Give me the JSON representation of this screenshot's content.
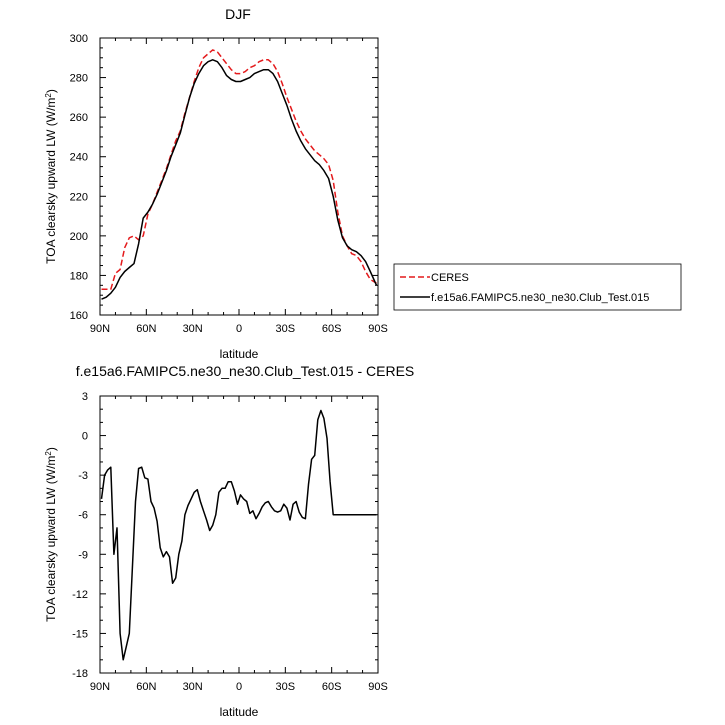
{
  "chart_data": [
    {
      "type": "line",
      "title": "DJF",
      "xlabel": "latitude",
      "ylabel_main": "TOA clearsky upward LW (W/m",
      "ylabel_sup": "2",
      "ylabel_tail": ")",
      "xlim": [
        90,
        -90
      ],
      "ylim": [
        160,
        300
      ],
      "xticks": [
        90,
        60,
        30,
        0,
        -30,
        -60,
        -90
      ],
      "xtick_labels": [
        "90N",
        "60N",
        "30N",
        "0",
        "30S",
        "60S",
        "90S"
      ],
      "yticks": [
        160,
        180,
        200,
        220,
        240,
        260,
        280,
        300
      ],
      "ytick_labels": [
        "160",
        "180",
        "200",
        "220",
        "240",
        "260",
        "280",
        "300"
      ],
      "legend_position": "right",
      "series": [
        {
          "name": "CERES",
          "color": "#e41a1c",
          "dash": "dashed",
          "x": [
            89,
            86,
            83,
            80,
            77,
            74,
            71,
            68,
            65,
            62,
            59,
            56,
            53,
            50,
            47,
            44,
            41,
            38,
            35,
            32,
            29,
            26,
            23,
            20,
            17,
            14,
            11,
            8,
            5,
            2,
            -1,
            -4,
            -7,
            -10,
            -13,
            -16,
            -19,
            -22,
            -25,
            -28,
            -31,
            -34,
            -37,
            -40,
            -43,
            -46,
            -49,
            -52,
            -55,
            -58,
            -61,
            -64,
            -67,
            -70,
            -73,
            -76,
            -79,
            -82,
            -85,
            -89
          ],
          "y": [
            173,
            173,
            173,
            181,
            183,
            194,
            199,
            200,
            198,
            200,
            211,
            216,
            222,
            228,
            234,
            241,
            248,
            253,
            262,
            270,
            278,
            285,
            290,
            292,
            294,
            293,
            290,
            287,
            284,
            282,
            282,
            283,
            285,
            286,
            288,
            289,
            289,
            287,
            283,
            277,
            270,
            264,
            258,
            253,
            249,
            246,
            243,
            241,
            239,
            236,
            228,
            212,
            200,
            195,
            191,
            190,
            187,
            182,
            178,
            176
          ]
        },
        {
          "name": "f.e15a6.FAMIPC5.ne30_ne30.Club_Test.015",
          "color": "#000000",
          "dash": "solid",
          "x": [
            89,
            86,
            83,
            80,
            77,
            74,
            71,
            68,
            65,
            62,
            59,
            56,
            53,
            50,
            47,
            44,
            41,
            38,
            35,
            32,
            29,
            26,
            23,
            20,
            17,
            14,
            11,
            8,
            5,
            2,
            -1,
            -4,
            -7,
            -10,
            -13,
            -16,
            -19,
            -22,
            -25,
            -28,
            -31,
            -34,
            -37,
            -40,
            -43,
            -46,
            -49,
            -52,
            -55,
            -58,
            -61,
            -64,
            -67,
            -70,
            -73,
            -76,
            -79,
            -82,
            -85,
            -89
          ],
          "y": [
            168,
            169,
            171,
            174,
            179,
            182,
            184,
            186,
            196,
            209,
            212,
            216,
            221,
            227,
            233,
            240,
            246,
            252,
            261,
            270,
            277,
            282,
            286,
            288,
            289,
            288,
            285,
            281,
            279,
            278,
            278,
            279,
            280,
            282,
            283,
            284,
            284,
            282,
            278,
            272,
            266,
            259,
            253,
            248,
            244,
            241,
            238,
            236,
            233,
            229,
            220,
            208,
            199,
            195,
            193,
            192,
            190,
            187,
            182,
            175
          ]
        }
      ]
    },
    {
      "type": "line",
      "title": "f.e15a6.FAMIPC5.ne30_ne30.Club_Test.015 - CERES",
      "xlabel": "latitude",
      "ylabel_main": "TOA clearsky upward LW (W/m",
      "ylabel_sup": "2",
      "ylabel_tail": ")",
      "xlim": [
        90,
        -90
      ],
      "ylim": [
        -18,
        3
      ],
      "xticks": [
        90,
        60,
        30,
        0,
        -30,
        -60,
        -90
      ],
      "xtick_labels": [
        "90N",
        "60N",
        "30N",
        "0",
        "30S",
        "60S",
        "90S"
      ],
      "yticks": [
        -18,
        -15,
        -12,
        -9,
        -6,
        -3,
        0,
        3
      ],
      "ytick_labels": [
        "-18",
        "-15",
        "-12",
        "-9",
        "-6",
        "-3",
        "0",
        "3"
      ],
      "series": [
        {
          "color": "#000000",
          "dash": "solid",
          "x": [
            89,
            87,
            85,
            83,
            81,
            79,
            77,
            75,
            73,
            71,
            69,
            67,
            65,
            63,
            61,
            59,
            57,
            55,
            53,
            51,
            49,
            47,
            45,
            43,
            41,
            39,
            37,
            35,
            33,
            31,
            29,
            27,
            25,
            23,
            21,
            19,
            17,
            15,
            13,
            11,
            9,
            7,
            5,
            3,
            1,
            -1,
            -3,
            -5,
            -7,
            -9,
            -11,
            -13,
            -15,
            -17,
            -19,
            -21,
            -23,
            -25,
            -27,
            -29,
            -31,
            -33,
            -35,
            -37,
            -39,
            -41,
            -43,
            -45,
            -47,
            -49,
            -51,
            -53,
            -55,
            -57,
            -59,
            -61,
            -63,
            -65,
            -67,
            -69,
            -71,
            -73,
            -75,
            -77,
            -79,
            -81,
            -83,
            -85,
            -87,
            -89
          ],
          "y": [
            -4.8,
            -3.0,
            -2.6,
            -2.4,
            -9.0,
            -7.0,
            -15.0,
            -17.0,
            -16.0,
            -15.0,
            -10.0,
            -5.0,
            -2.5,
            -2.4,
            -3.2,
            -3.3,
            -5.0,
            -5.5,
            -6.5,
            -8.5,
            -9.2,
            -8.8,
            -9.2,
            -11.2,
            -10.8,
            -9.0,
            -8.0,
            -6.0,
            -5.3,
            -4.8,
            -4.3,
            -4.1,
            -5.0,
            -5.7,
            -6.4,
            -7.2,
            -6.8,
            -6.0,
            -4.3,
            -4.0,
            -4.0,
            -3.5,
            -3.5,
            -4.2,
            -5.2,
            -4.5,
            -4.8,
            -5.0,
            -5.9,
            -5.7,
            -6.3,
            -5.9,
            -5.4,
            -5.1,
            -5.0,
            -5.4,
            -5.7,
            -5.8,
            -5.7,
            -5.2,
            -5.5,
            -6.4,
            -5.2,
            -5.0,
            -5.8,
            -6.2,
            -6.3,
            -3.7,
            -1.8,
            -1.5,
            1.2,
            1.9,
            1.3,
            -0.2,
            -3.5,
            -6.0,
            -6.0,
            -6.0,
            -6.0,
            -6.0,
            -6.0,
            -6.0,
            -6.0,
            -6.0,
            -6.0,
            -6.0,
            -6.0,
            -6.0,
            -6.0,
            -6.0
          ]
        }
      ]
    }
  ]
}
